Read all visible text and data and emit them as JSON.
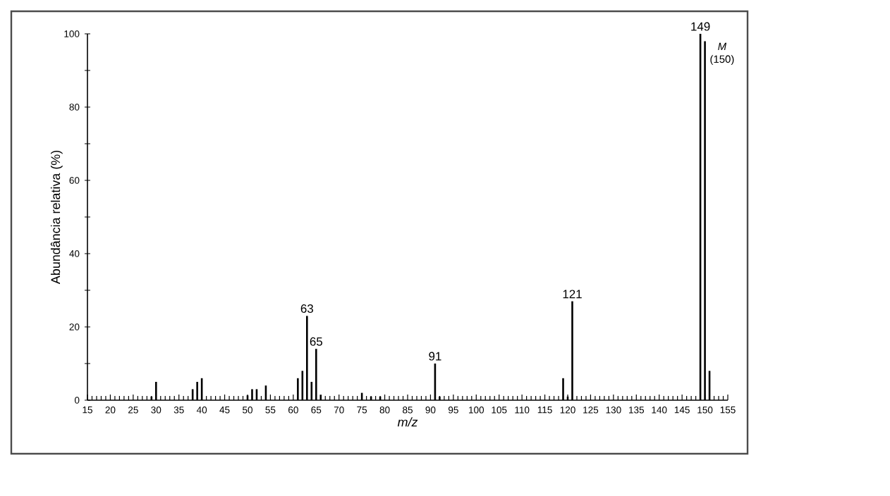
{
  "chart_data": {
    "type": "bar",
    "xlabel": "m/z",
    "ylabel": "Abundância relativa (%)",
    "x": [
      29,
      30,
      38,
      39,
      40,
      50,
      51,
      52,
      54,
      61,
      62,
      63,
      64,
      65,
      66,
      75,
      77,
      79,
      91,
      92,
      119,
      120,
      121,
      149,
      150,
      151
    ],
    "values": [
      1,
      5,
      3,
      5,
      6,
      1.3,
      3,
      3,
      4,
      6,
      8,
      23,
      5,
      14,
      1.5,
      2,
      1,
      1,
      10,
      1,
      6,
      1,
      27,
      100,
      98,
      8
    ],
    "color": "#000000",
    "xlim": [
      15,
      155
    ],
    "xticks": [
      15,
      20,
      25,
      30,
      35,
      40,
      45,
      50,
      55,
      60,
      65,
      70,
      75,
      80,
      85,
      90,
      95,
      100,
      105,
      110,
      115,
      120,
      125,
      130,
      135,
      140,
      145,
      150,
      155
    ],
    "ylim": [
      0,
      100
    ],
    "yticks": [
      0,
      {
        "value": 10,
        "label": null
      },
      20,
      {
        "value": 30,
        "label": null
      },
      40,
      {
        "value": 50,
        "label": null
      },
      60,
      {
        "value": 70,
        "label": null
      },
      80,
      {
        "value": 90,
        "label": null
      },
      100
    ],
    "grid": false,
    "annotations": [
      {
        "text": "63",
        "x": 63,
        "y": 23
      },
      {
        "text": "65",
        "x": 65,
        "y": 14
      },
      {
        "text": "91",
        "x": 91,
        "y": 10
      },
      {
        "text": "121",
        "x": 121,
        "y": 27
      },
      {
        "text": "149",
        "x": 149,
        "y": 100
      },
      {
        "text": "*M* (150)",
        "x": 150,
        "y": 98
      }
    ]
  }
}
